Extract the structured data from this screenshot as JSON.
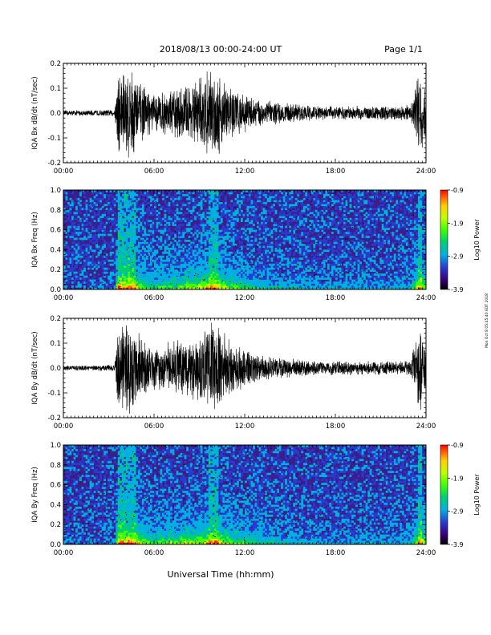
{
  "header": {
    "date_range": "2018/08/13  00:00-24:00 UT",
    "page": "Page 1/1"
  },
  "footer": {
    "xlabel": "Universal Time (hh:mm)"
  },
  "side_stamp": "Mon Oct 8 05:45:40 EDT 2018",
  "colors": {
    "trace": "#000000",
    "spectrogram_background": "#3a1e8c",
    "colorbar_stops": [
      "#000000",
      "#3a007a",
      "#2a3ad0",
      "#00b0e0",
      "#00d070",
      "#40ff00",
      "#c0ff00",
      "#ffd000",
      "#ff6000",
      "#ff0000"
    ]
  },
  "chart_data": [
    {
      "id": "bx_waveform",
      "type": "line",
      "ylabel": "IQA Bx dB/dt (nT/sec)",
      "x_ticks": [
        "00:00",
        "06:00",
        "12:00",
        "18:00",
        "24:00"
      ],
      "xlim_hours": [
        0,
        24
      ],
      "ylim": [
        -0.2,
        0.2
      ],
      "y_ticks": [
        "-0.2",
        "-0.1",
        "0.0",
        "0.1",
        "0.2"
      ],
      "envelope": {
        "hours": [
          0,
          2,
          3.4,
          3.6,
          4.0,
          4.6,
          5.2,
          6.0,
          7.0,
          8.0,
          9.0,
          10.0,
          11.0,
          12.0,
          13.0,
          14.0,
          15.0,
          16.0,
          17.0,
          18.0,
          19.0,
          20.0,
          21.0,
          22.0,
          23.0,
          23.6,
          24.0
        ],
        "amplitude": [
          0.012,
          0.012,
          0.015,
          0.2,
          0.2,
          0.2,
          0.12,
          0.08,
          0.1,
          0.12,
          0.15,
          0.2,
          0.12,
          0.08,
          0.06,
          0.05,
          0.04,
          0.035,
          0.03,
          0.03,
          0.03,
          0.03,
          0.03,
          0.03,
          0.035,
          0.2,
          0.1
        ]
      }
    },
    {
      "id": "bx_spectrogram",
      "type": "heatmap",
      "ylabel": "IQA Bx Freq (Hz)",
      "x_ticks": [
        "00:00",
        "06:00",
        "12:00",
        "18:00",
        "24:00"
      ],
      "ylim": [
        0,
        1.0
      ],
      "y_ticks": [
        "0.0",
        "0.2",
        "0.4",
        "0.6",
        "0.8",
        "1.0"
      ],
      "colorbar": {
        "label": "Log10 Power",
        "ticks": [
          "-0.9",
          "-1.9",
          "-2.9",
          "-3.9"
        ],
        "range": [
          -3.9,
          -0.9
        ]
      }
    },
    {
      "id": "by_waveform",
      "type": "line",
      "ylabel": "IQA By dB/dt (nT/sec)",
      "x_ticks": [
        "00:00",
        "06:00",
        "12:00",
        "18:00",
        "24:00"
      ],
      "xlim_hours": [
        0,
        24
      ],
      "ylim": [
        -0.2,
        0.2
      ],
      "y_ticks": [
        "-0.2",
        "-0.1",
        "0.0",
        "0.1",
        "0.2"
      ],
      "envelope": {
        "hours": [
          0,
          2,
          3.4,
          3.6,
          4.0,
          4.6,
          5.2,
          6.0,
          7.0,
          8.0,
          9.0,
          10.0,
          11.0,
          12.0,
          13.0,
          14.0,
          15.0,
          16.0,
          17.0,
          18.0,
          19.0,
          20.0,
          21.0,
          22.0,
          23.0,
          23.6,
          24.0
        ],
        "amplitude": [
          0.012,
          0.012,
          0.015,
          0.2,
          0.2,
          0.2,
          0.13,
          0.09,
          0.11,
          0.13,
          0.14,
          0.2,
          0.12,
          0.08,
          0.06,
          0.05,
          0.04,
          0.035,
          0.03,
          0.03,
          0.03,
          0.03,
          0.03,
          0.03,
          0.035,
          0.2,
          0.12
        ]
      }
    },
    {
      "id": "by_spectrogram",
      "type": "heatmap",
      "ylabel": "IQA By Freq (Hz)",
      "x_ticks": [
        "00:00",
        "06:00",
        "12:00",
        "18:00",
        "24:00"
      ],
      "ylim": [
        0,
        1.0
      ],
      "y_ticks": [
        "0.0",
        "0.2",
        "0.4",
        "0.6",
        "0.8",
        "1.0"
      ],
      "colorbar": {
        "label": "Log10 Power",
        "ticks": [
          "-0.9",
          "-1.9",
          "-2.9",
          "-3.9"
        ],
        "range": [
          -3.9,
          -0.9
        ]
      }
    }
  ]
}
